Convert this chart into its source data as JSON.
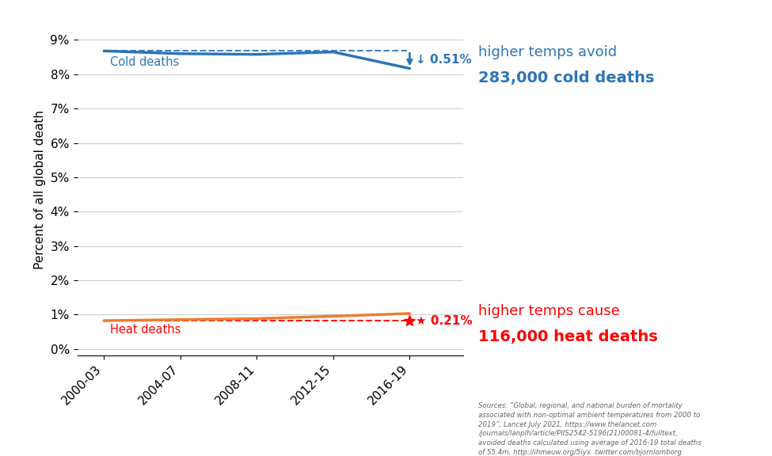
{
  "ylabel": "Percent of all global death",
  "background_color": "#ffffff",
  "x_labels": [
    "2000-03",
    "2004-07",
    "2008-11",
    "2012-15",
    "2016-19"
  ],
  "x_values": [
    0,
    1,
    2,
    3,
    4
  ],
  "cold_deaths": [
    8.68,
    8.6,
    8.58,
    8.65,
    8.17
  ],
  "cold_dashed_reference": [
    8.68,
    8.68,
    8.68,
    8.68,
    8.68
  ],
  "heat_deaths": [
    0.82,
    0.85,
    0.88,
    0.95,
    1.03
  ],
  "heat_dashed_reference": [
    0.82,
    0.82,
    0.82,
    0.82,
    0.82
  ],
  "cold_color": "#2E75B6",
  "heat_color": "#ED7D31",
  "heat_annotation_color": "#FF0000",
  "cold_annotation_color": "#2E75B6",
  "yticks": [
    0,
    1,
    2,
    3,
    4,
    5,
    6,
    7,
    8,
    9
  ],
  "ylim": [
    -0.2,
    9.5
  ],
  "cold_label": "Cold deaths",
  "heat_label": "Heat deaths",
  "cold_pct_label": "↓ 0.51%",
  "heat_pct_label": "★ 0.21%",
  "right_text_cold_line1": "higher temps avoid",
  "right_text_cold_line2": "283,000 cold deaths",
  "right_text_heat_line1": "higher temps cause",
  "right_text_heat_line2": "116,000 heat deaths",
  "source_text": "Sources: “Global, regional, and national burden of mortality\nassociated with non-optimal ambient temperatures from 2000 to\n2019”, Lancet July 2021, https://www.thelancet.com\n/journals/lanplh/article/PIIS2542-5196(21)00081-4/fulltext,\navoided deaths calculated using average of 2016-19 total deaths\nof 55.4m, http://ihmeuw.org/5iyx. twitter.com/bjornlomborg"
}
